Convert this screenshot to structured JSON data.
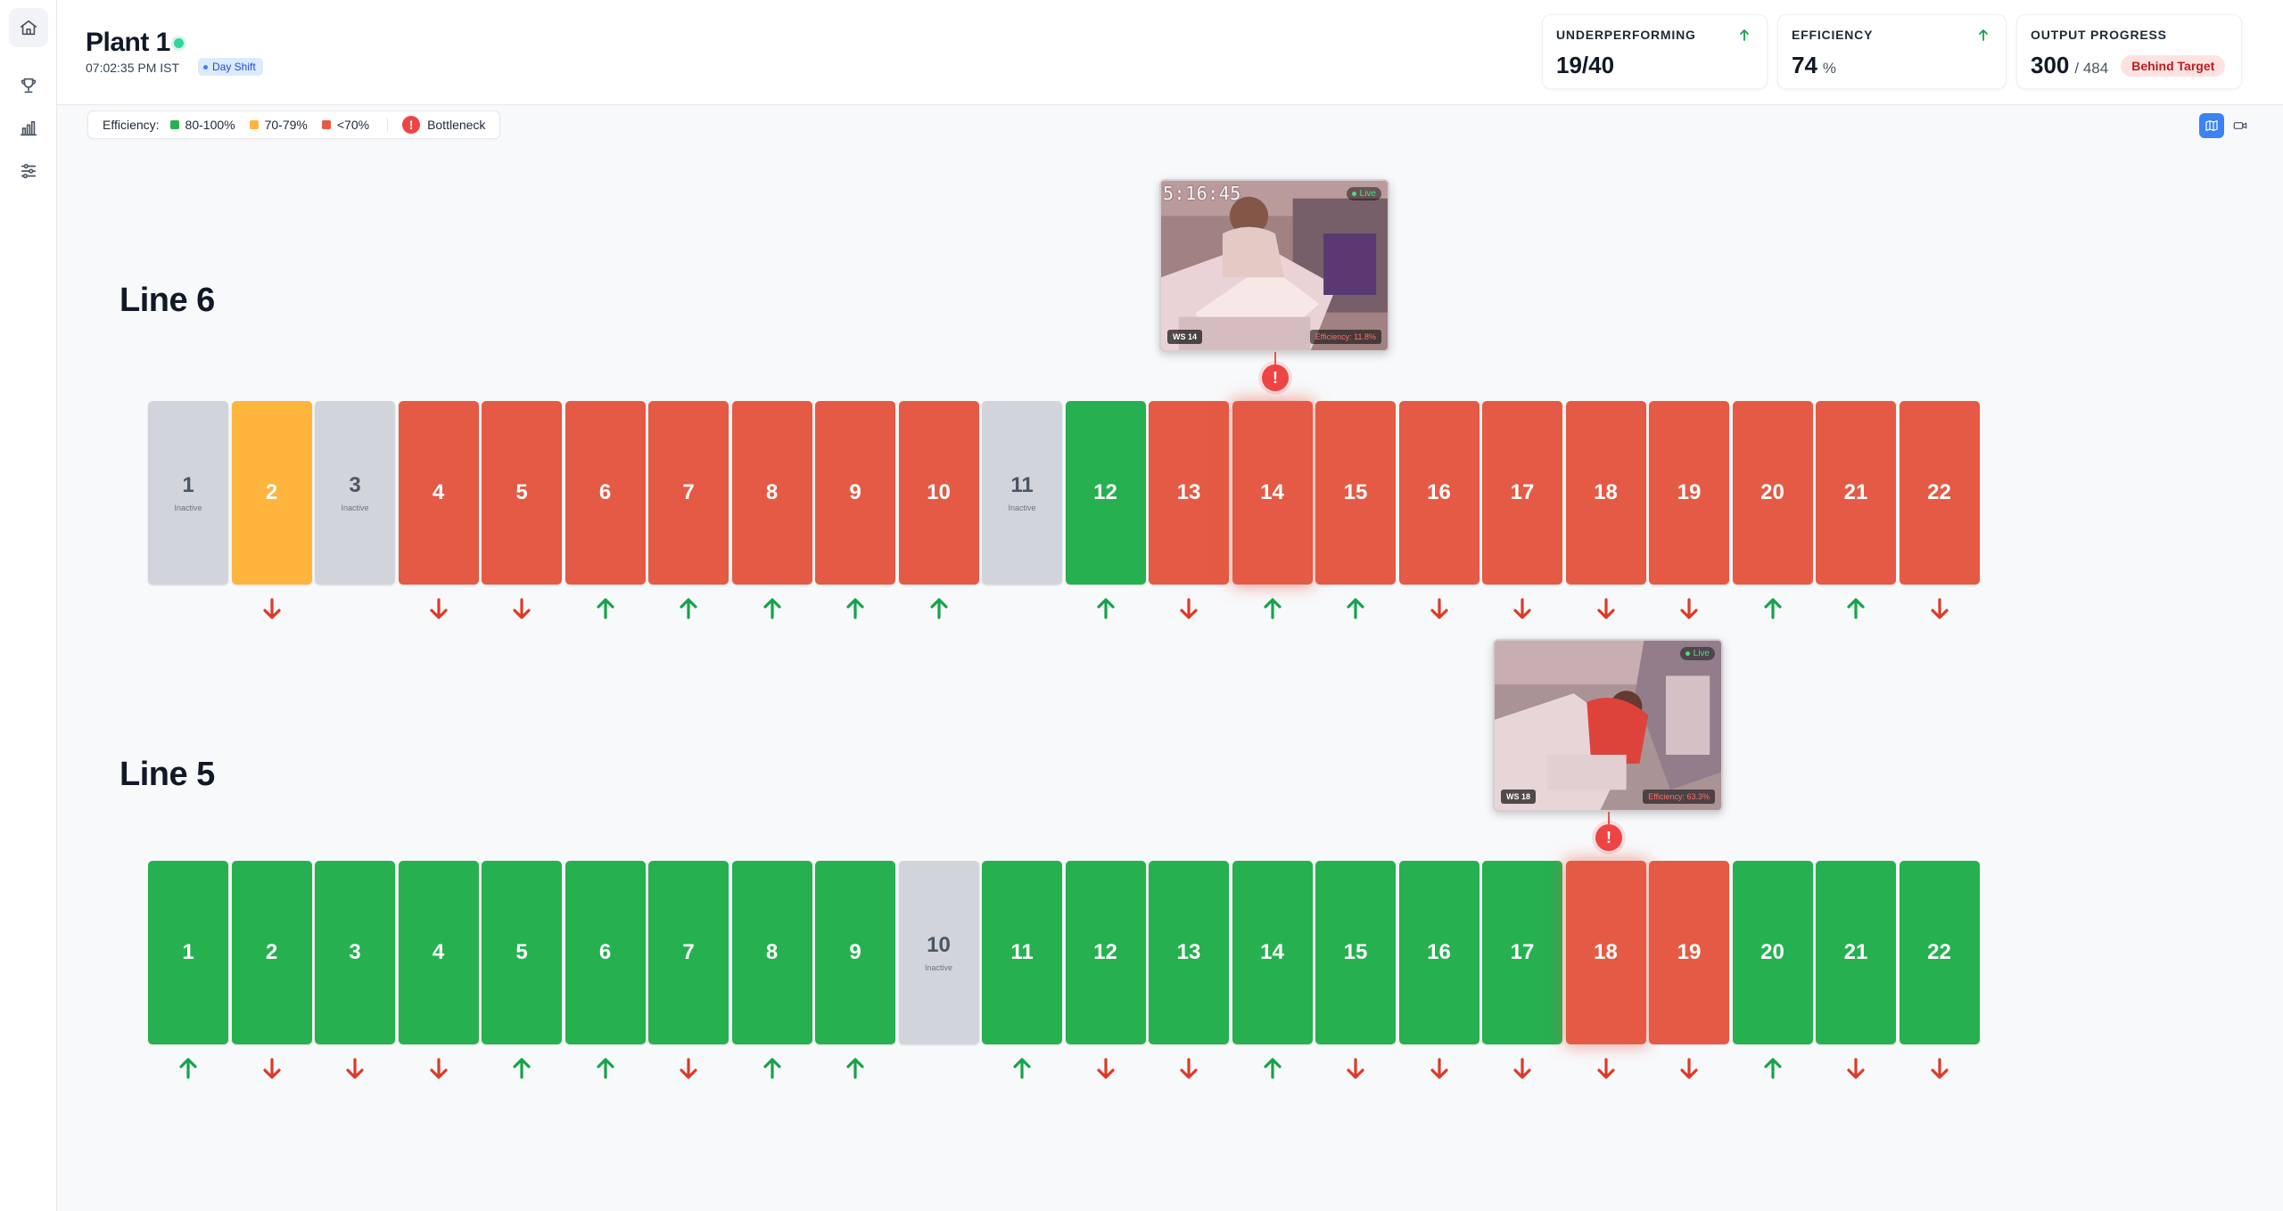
{
  "header": {
    "plant_name": "Plant 1",
    "time": "07:02:35 PM IST",
    "shift": "Day Shift"
  },
  "kpis": {
    "underperforming": {
      "label": "UNDERPERFORMING",
      "value": "19/40",
      "trend": "up"
    },
    "efficiency": {
      "label": "EFFICIENCY",
      "value": "74",
      "unit": "%",
      "trend": "up"
    },
    "output": {
      "label": "OUTPUT PROGRESS",
      "value": "300",
      "target": "/ 484",
      "status": "Behind Target"
    }
  },
  "legend": {
    "label": "Efficiency:",
    "items": [
      {
        "label": "80-100%",
        "color": "#26b050"
      },
      {
        "label": "70-79%",
        "color": "#ffb43e"
      },
      {
        "label": "<70%",
        "color": "#e55a44"
      }
    ],
    "bottleneck_label": "Bottleneck",
    "bottleneck_symbol": "!"
  },
  "colors": {
    "green": "#26b050",
    "orange": "#ffb43e",
    "red": "#e55a44",
    "inactive": "#d1d5db",
    "up": "#16a34a",
    "down": "#dc3b27"
  },
  "inactive_label": "Inactive",
  "lines": [
    {
      "name": "Line 6",
      "bottleneck_ws": 14,
      "camera": {
        "timestamp": "5:16:45",
        "live": "Live",
        "ws_label": "WS 14",
        "efficiency": "Efficiency: 11.8%"
      },
      "stations": [
        {
          "num": "1",
          "status": "gray",
          "trend": ""
        },
        {
          "num": "2",
          "status": "orange",
          "trend": "down"
        },
        {
          "num": "3",
          "status": "gray",
          "trend": ""
        },
        {
          "num": "4",
          "status": "red",
          "trend": "down"
        },
        {
          "num": "5",
          "status": "red",
          "trend": "down"
        },
        {
          "num": "6",
          "status": "red",
          "trend": "up"
        },
        {
          "num": "7",
          "status": "red",
          "trend": "up"
        },
        {
          "num": "8",
          "status": "red",
          "trend": "up"
        },
        {
          "num": "9",
          "status": "red",
          "trend": "up"
        },
        {
          "num": "10",
          "status": "red",
          "trend": "up"
        },
        {
          "num": "11",
          "status": "gray",
          "trend": ""
        },
        {
          "num": "12",
          "status": "green",
          "trend": "up"
        },
        {
          "num": "13",
          "status": "red",
          "trend": "down"
        },
        {
          "num": "14",
          "status": "red",
          "trend": "up"
        },
        {
          "num": "15",
          "status": "red",
          "trend": "up"
        },
        {
          "num": "16",
          "status": "red",
          "trend": "down"
        },
        {
          "num": "17",
          "status": "red",
          "trend": "down"
        },
        {
          "num": "18",
          "status": "red",
          "trend": "down"
        },
        {
          "num": "19",
          "status": "red",
          "trend": "down"
        },
        {
          "num": "20",
          "status": "red",
          "trend": "up"
        },
        {
          "num": "21",
          "status": "red",
          "trend": "up"
        },
        {
          "num": "22",
          "status": "red",
          "trend": "down"
        }
      ]
    },
    {
      "name": "Line 5",
      "bottleneck_ws": 18,
      "camera": {
        "timestamp": "",
        "live": "Live",
        "ws_label": "WS 18",
        "efficiency": "Efficiency: 63.3%"
      },
      "stations": [
        {
          "num": "1",
          "status": "green",
          "trend": "up"
        },
        {
          "num": "2",
          "status": "green",
          "trend": "down"
        },
        {
          "num": "3",
          "status": "green",
          "trend": "down"
        },
        {
          "num": "4",
          "status": "green",
          "trend": "down"
        },
        {
          "num": "5",
          "status": "green",
          "trend": "up"
        },
        {
          "num": "6",
          "status": "green",
          "trend": "up"
        },
        {
          "num": "7",
          "status": "green",
          "trend": "down"
        },
        {
          "num": "8",
          "status": "green",
          "trend": "up"
        },
        {
          "num": "9",
          "status": "green",
          "trend": "up"
        },
        {
          "num": "10",
          "status": "gray",
          "trend": ""
        },
        {
          "num": "11",
          "status": "green",
          "trend": "up"
        },
        {
          "num": "12",
          "status": "green",
          "trend": "down"
        },
        {
          "num": "13",
          "status": "green",
          "trend": "down"
        },
        {
          "num": "14",
          "status": "green",
          "trend": "up"
        },
        {
          "num": "15",
          "status": "green",
          "trend": "down"
        },
        {
          "num": "16",
          "status": "green",
          "trend": "down"
        },
        {
          "num": "17",
          "status": "green",
          "trend": "down"
        },
        {
          "num": "18",
          "status": "red",
          "trend": "down"
        },
        {
          "num": "19",
          "status": "red",
          "trend": "down"
        },
        {
          "num": "20",
          "status": "green",
          "trend": "up"
        },
        {
          "num": "21",
          "status": "green",
          "trend": "down"
        },
        {
          "num": "22",
          "status": "green",
          "trend": "down"
        }
      ]
    }
  ],
  "sidebar": {
    "items": [
      "home-icon",
      "trophy-icon",
      "bar-chart-icon",
      "sliders-icon"
    ]
  },
  "view_toggle": {
    "items": [
      "map-icon",
      "camera-icon"
    ],
    "active": "map-icon"
  }
}
